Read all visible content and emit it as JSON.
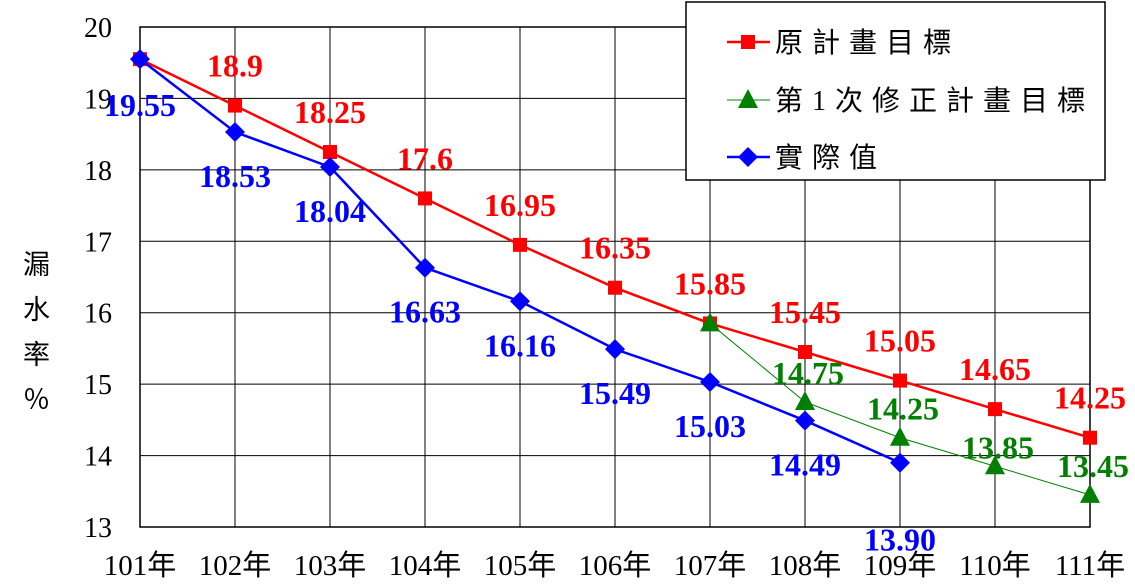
{
  "chart_data": {
    "type": "line",
    "ylabel": "漏水率％",
    "categories": [
      "101年",
      "102年",
      "103年",
      "104年",
      "105年",
      "106年",
      "107年",
      "108年",
      "109年",
      "110年",
      "111年"
    ],
    "ylim": [
      13,
      20
    ],
    "yticks": [
      13,
      14,
      15,
      16,
      17,
      18,
      19,
      20
    ],
    "grid": true,
    "legend": "top-right",
    "series": [
      {
        "name": "原計畫目標",
        "color": "#ff0000",
        "marker": "square",
        "values": [
          19.55,
          18.9,
          18.25,
          17.6,
          16.95,
          16.35,
          15.85,
          15.45,
          15.05,
          14.65,
          14.25
        ],
        "labels": [
          null,
          "18.9",
          "18.25",
          "17.6",
          "16.95",
          "16.35",
          "15.85",
          "15.45",
          "15.05",
          "14.65",
          "14.25"
        ]
      },
      {
        "name": "第1次修正計畫目標",
        "color": "#008000",
        "marker": "triangle",
        "values": [
          null,
          null,
          null,
          null,
          null,
          null,
          15.85,
          14.75,
          14.25,
          13.85,
          13.45
        ],
        "labels": [
          null,
          null,
          null,
          null,
          null,
          null,
          null,
          "14.75",
          "14.25",
          "13.85",
          "13.45"
        ]
      },
      {
        "name": "實際值",
        "color": "#0000ff",
        "marker": "diamond",
        "values": [
          19.55,
          18.53,
          18.04,
          16.63,
          16.16,
          15.49,
          15.03,
          14.49,
          13.9,
          null,
          null
        ],
        "labels": [
          "19.55",
          "18.53",
          "18.04",
          "16.63",
          "16.16",
          "15.49",
          "15.03",
          "14.49",
          "13.90",
          null,
          null
        ]
      }
    ]
  }
}
